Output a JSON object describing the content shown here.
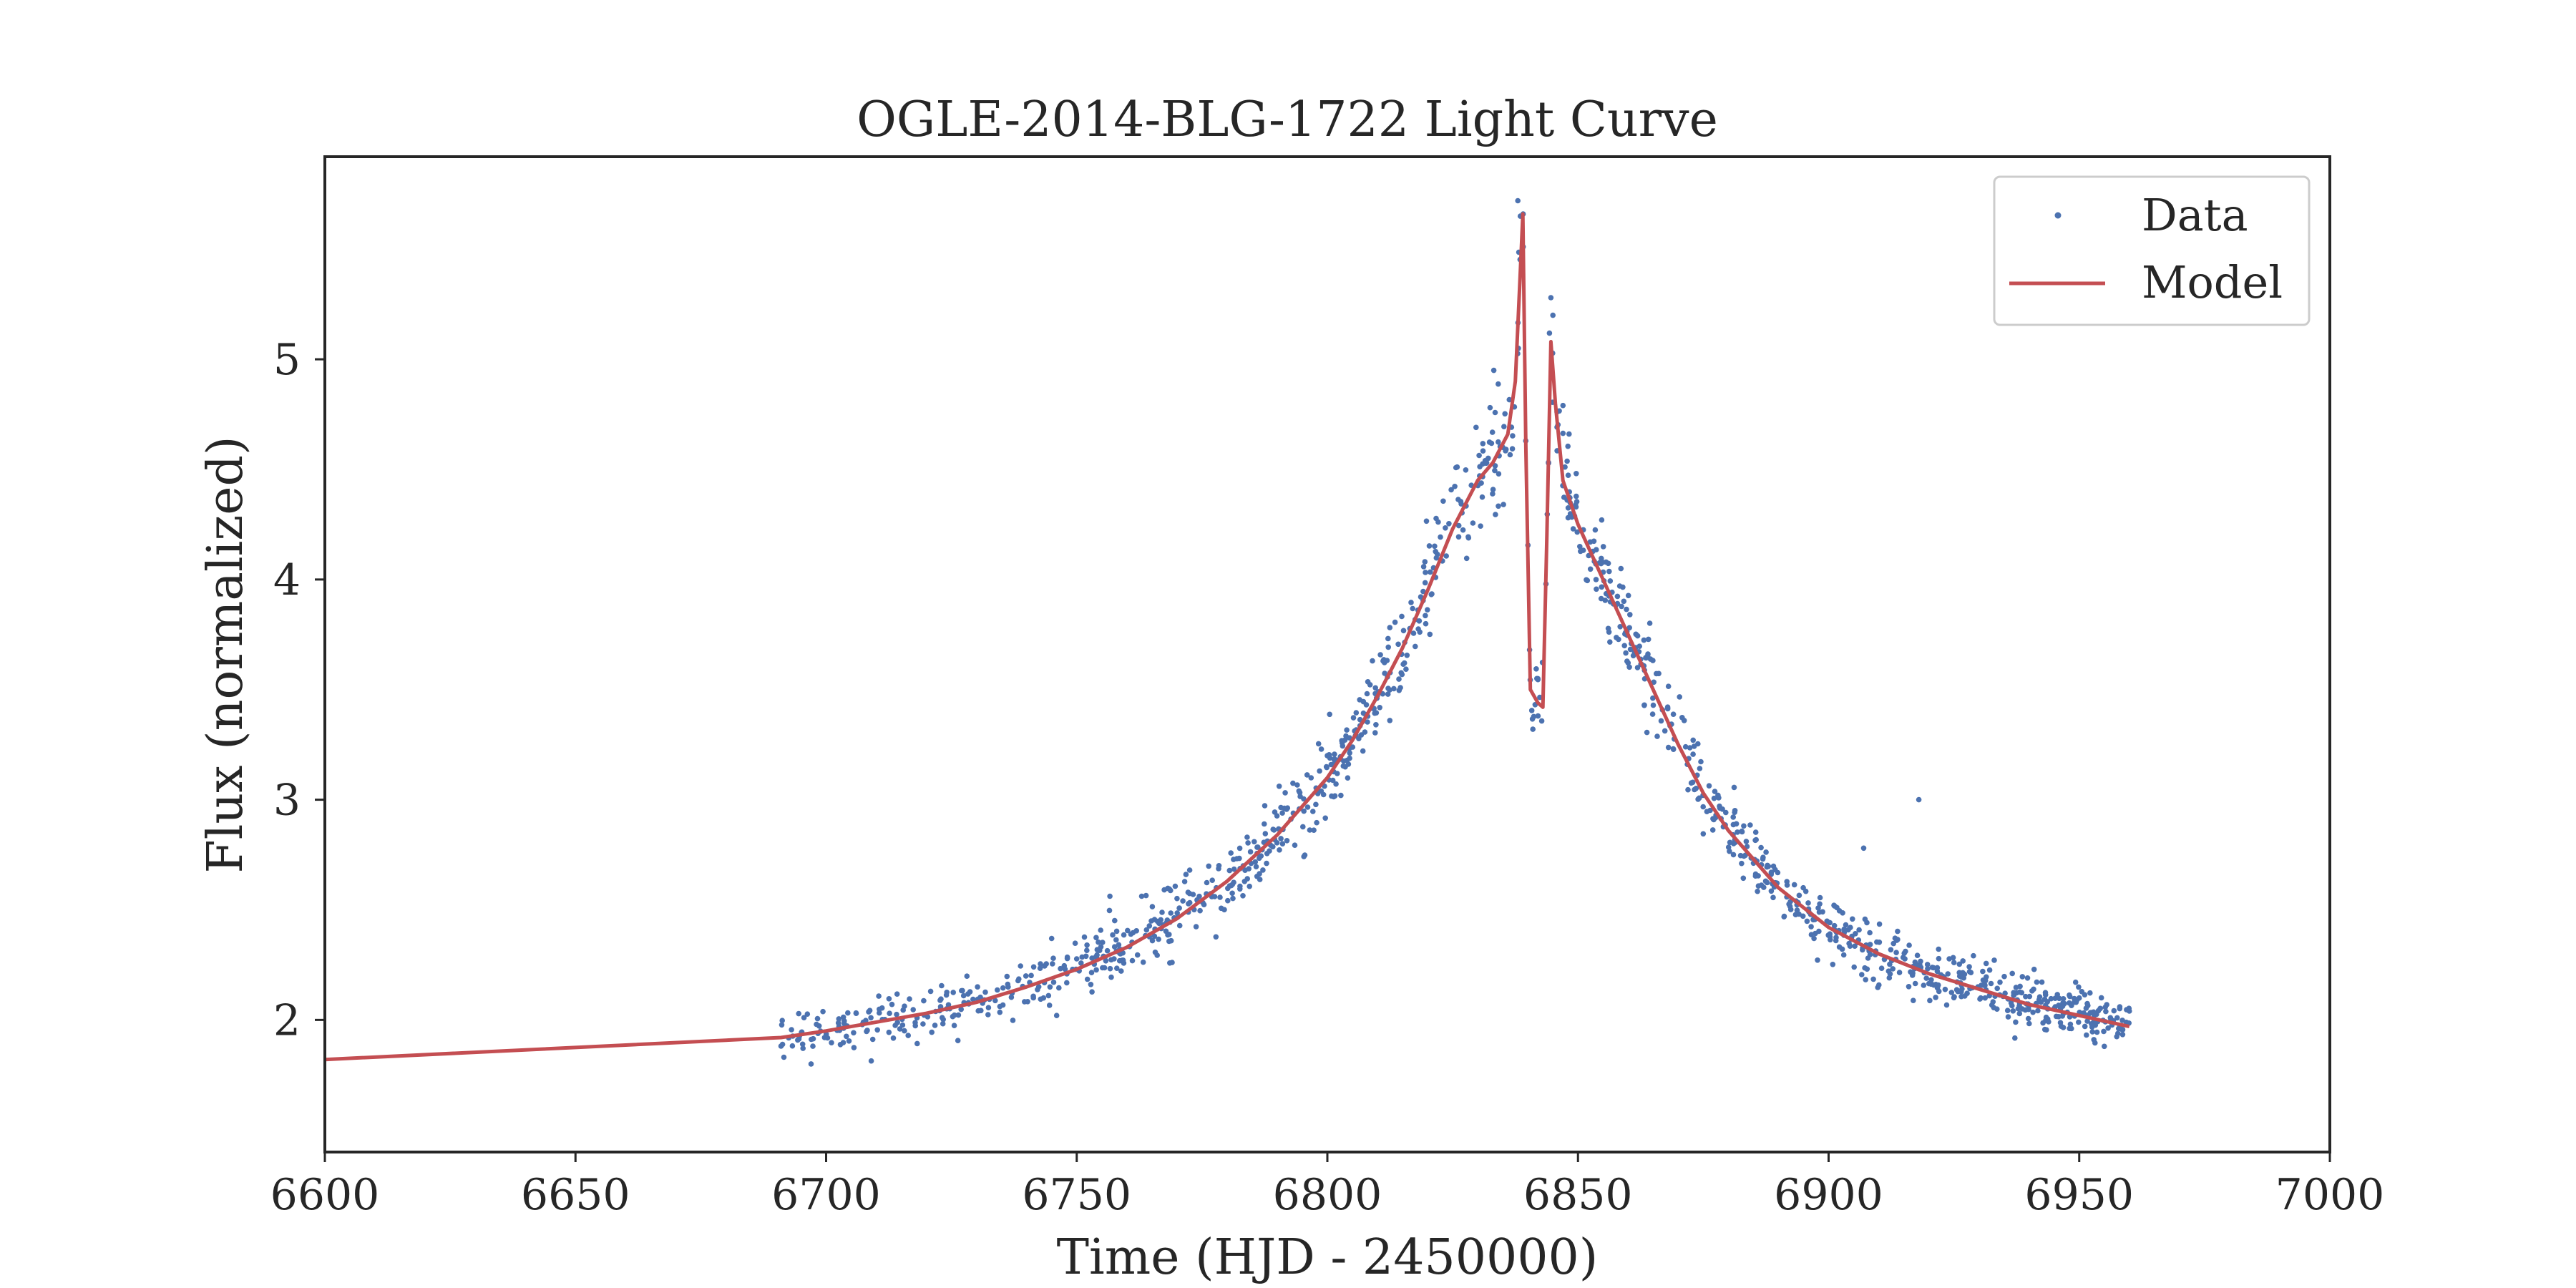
{
  "chart_data": {
    "type": "scatter",
    "title": "OGLE-2014-BLG-1722 Light Curve",
    "xlabel": "Time (HJD - 2450000)",
    "ylabel": "Flux (normalized)",
    "xlim": [
      6600,
      7000
    ],
    "ylim": [
      1.4,
      5.92
    ],
    "xticks": [
      6600,
      6650,
      6700,
      6750,
      6800,
      6850,
      6900,
      6950,
      7000
    ],
    "yticks": [
      2,
      3,
      4,
      5
    ],
    "grid": false,
    "legend": {
      "placement": "top-right",
      "entries": [
        "Data",
        "Model"
      ]
    },
    "colors": {
      "data": "#4c72b0",
      "model": "#c44e52",
      "axes": "#262626"
    },
    "series": [
      {
        "name": "Model",
        "kind": "line",
        "x": [
          6600,
          6691,
          6700,
          6710,
          6720,
          6730,
          6740,
          6750,
          6760,
          6770,
          6780,
          6790,
          6800,
          6805,
          6810,
          6815,
          6820,
          6825,
          6830,
          6833,
          6836,
          6837.5,
          6838.5,
          6839,
          6839.6,
          6840.5,
          6842,
          6843,
          6843.8,
          6844.6,
          6845.5,
          6847,
          6850,
          6855,
          6860,
          6865,
          6870,
          6875,
          6880,
          6890,
          6900,
          6910,
          6920,
          6930,
          6940,
          6950,
          6960
        ],
        "y": [
          1.82,
          1.92,
          1.95,
          1.99,
          2.03,
          2.08,
          2.15,
          2.23,
          2.33,
          2.46,
          2.63,
          2.84,
          3.1,
          3.27,
          3.47,
          3.69,
          3.95,
          4.23,
          4.45,
          4.53,
          4.66,
          4.9,
          5.4,
          5.66,
          4.6,
          3.5,
          3.44,
          3.42,
          4.2,
          5.08,
          4.8,
          4.45,
          4.25,
          4.0,
          3.75,
          3.5,
          3.25,
          3.03,
          2.86,
          2.6,
          2.42,
          2.3,
          2.21,
          2.14,
          2.07,
          2.02,
          1.97
        ]
      },
      {
        "name": "Data",
        "kind": "scatter",
        "generator": "approx",
        "n_points": 1300,
        "x_range": [
          6691,
          6960
        ],
        "noise": 0.03,
        "extra_points": [
          {
            "x": 6745,
            "y": 2.37
          },
          {
            "x": 6746,
            "y": 2.02
          },
          {
            "x": 6800,
            "y": 3.2
          },
          {
            "x": 6835,
            "y": 4.6
          },
          {
            "x": 6838,
            "y": 5.72
          },
          {
            "x": 6838.5,
            "y": 5.65
          },
          {
            "x": 6841,
            "y": 3.32
          },
          {
            "x": 6842,
            "y": 3.55
          },
          {
            "x": 6844.6,
            "y": 5.28
          },
          {
            "x": 6845,
            "y": 5.2
          },
          {
            "x": 6907,
            "y": 2.78
          },
          {
            "x": 6918,
            "y": 3.0
          },
          {
            "x": 6697,
            "y": 1.8
          },
          {
            "x": 6955,
            "y": 1.88
          },
          {
            "x": 6960,
            "y": 2.04
          }
        ]
      }
    ]
  }
}
